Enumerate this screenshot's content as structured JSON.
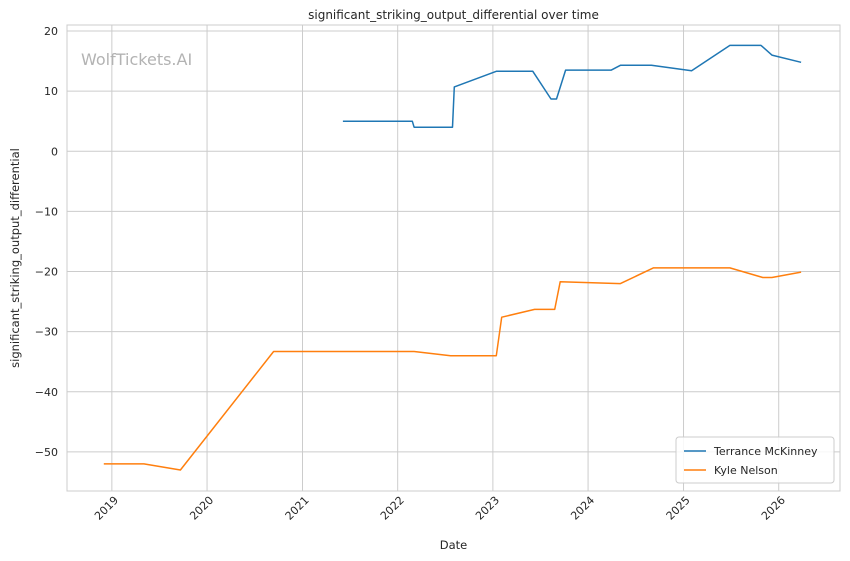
{
  "chart_data": {
    "type": "line",
    "title": "significant_striking_output_differential over time",
    "xlabel": "Date",
    "ylabel": "significant_striking_output_differential",
    "watermark": "WolfTickets.AI",
    "x_type": "date",
    "xlim": [
      "2018-07-13",
      "2026-08-24"
    ],
    "ylim": [
      -56.5,
      21
    ],
    "x_ticks": [
      "2019",
      "2020",
      "2021",
      "2022",
      "2023",
      "2024",
      "2025",
      "2026"
    ],
    "y_ticks": [
      20,
      10,
      0,
      -10,
      -20,
      -30,
      -40,
      -50
    ],
    "y_tick_labels": [
      "20",
      "10",
      "0",
      "−10",
      "−20",
      "−30",
      "−40",
      "−50"
    ],
    "grid": true,
    "legend_position": "bottom-right",
    "series": [
      {
        "name": "Terrance McKinney",
        "color": "#1f77b4",
        "points": [
          {
            "x": "2021-06-05",
            "y": 5.0
          },
          {
            "x": "2022-02-26",
            "y": 5.0
          },
          {
            "x": "2022-03-05",
            "y": 4.0
          },
          {
            "x": "2022-07-30",
            "y": 4.0
          },
          {
            "x": "2022-08-06",
            "y": 10.7
          },
          {
            "x": "2023-01-14",
            "y": 13.3
          },
          {
            "x": "2023-06-03",
            "y": 13.3
          },
          {
            "x": "2023-08-12",
            "y": 8.7
          },
          {
            "x": "2023-09-02",
            "y": 8.7
          },
          {
            "x": "2023-10-07",
            "y": 13.5
          },
          {
            "x": "2024-03-30",
            "y": 13.5
          },
          {
            "x": "2024-05-04",
            "y": 14.3
          },
          {
            "x": "2024-08-31",
            "y": 14.3
          },
          {
            "x": "2025-02-01",
            "y": 13.4
          },
          {
            "x": "2025-06-28",
            "y": 17.6
          },
          {
            "x": "2025-10-25",
            "y": 17.6
          },
          {
            "x": "2025-12-06",
            "y": 16.0
          },
          {
            "x": "2026-03-28",
            "y": 14.8
          }
        ]
      },
      {
        "name": "Kyle Nelson",
        "color": "#ff7f0e",
        "points": [
          {
            "x": "2018-12-01",
            "y": -52.0
          },
          {
            "x": "2019-05-04",
            "y": -52.0
          },
          {
            "x": "2019-09-21",
            "y": -53.0
          },
          {
            "x": "2020-09-12",
            "y": -33.3
          },
          {
            "x": "2022-03-05",
            "y": -33.3
          },
          {
            "x": "2022-07-23",
            "y": -34.0
          },
          {
            "x": "2023-01-14",
            "y": -34.0
          },
          {
            "x": "2023-02-04",
            "y": -27.6
          },
          {
            "x": "2023-06-10",
            "y": -26.3
          },
          {
            "x": "2023-08-26",
            "y": -26.3
          },
          {
            "x": "2023-09-16",
            "y": -21.7
          },
          {
            "x": "2024-05-04",
            "y": -22.0
          },
          {
            "x": "2024-09-07",
            "y": -19.4
          },
          {
            "x": "2025-06-28",
            "y": -19.4
          },
          {
            "x": "2025-11-01",
            "y": -21.0
          },
          {
            "x": "2025-12-06",
            "y": -21.0
          },
          {
            "x": "2026-03-28",
            "y": -20.1
          }
        ]
      }
    ]
  }
}
